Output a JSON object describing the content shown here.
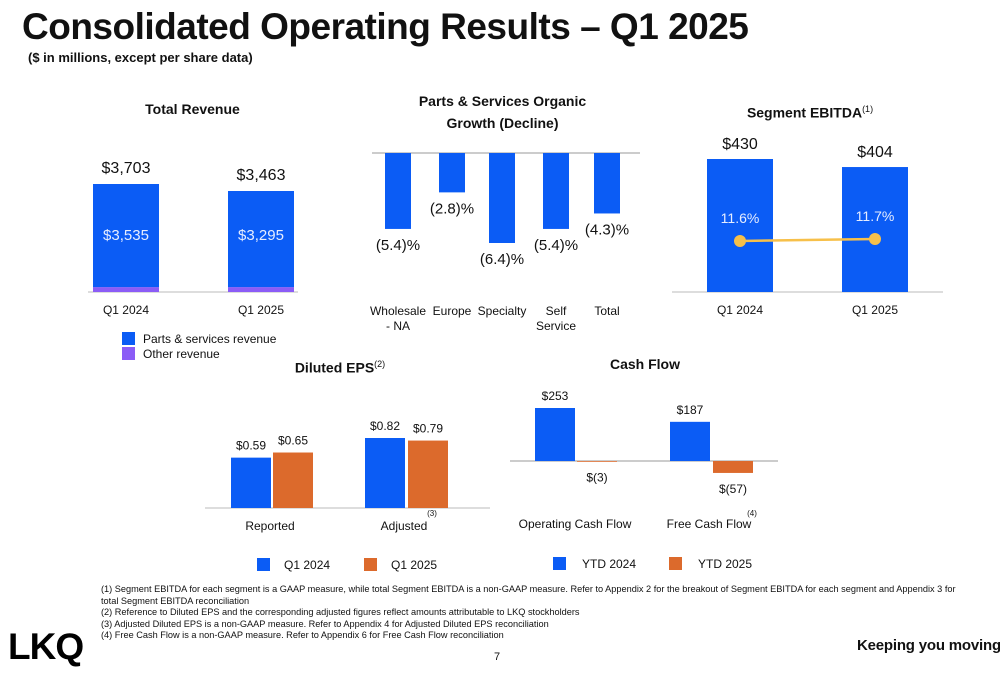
{
  "page": {
    "title": "Consolidated Operating Results – Q1 2025",
    "subtitle": "($ in millions, except per share data)",
    "page_number": "7",
    "tagline": "Keeping you moving",
    "logo_text": "LKQ"
  },
  "colors": {
    "blue": "#0b5cf5",
    "purple": "#8b5cf6",
    "orange": "#dc6a2c",
    "yellow": "#f7c04a"
  },
  "chart_data": [
    {
      "id": "total_revenue",
      "type": "bar",
      "stacked": true,
      "title": "Total Revenue",
      "categories": [
        "Q1 2024",
        "Q1 2025"
      ],
      "series": [
        {
          "name": "Parts & services revenue",
          "values": [
            3535,
            3295
          ],
          "labels": [
            "$3,535",
            "$3,295"
          ]
        },
        {
          "name": "Other revenue",
          "values": [
            168,
            168
          ]
        }
      ],
      "total_labels": [
        "$3,703",
        "$3,463"
      ]
    },
    {
      "id": "organic_growth",
      "type": "bar",
      "title_line1": "Parts & Services Organic",
      "title_line2": "Growth (Decline)",
      "categories": [
        [
          "Wholesale",
          "- NA"
        ],
        [
          "Europe"
        ],
        [
          "Specialty"
        ],
        [
          "Self",
          "Service"
        ],
        [
          "Total"
        ]
      ],
      "values": [
        -5.4,
        -2.8,
        -6.4,
        -5.4,
        -4.3
      ],
      "labels": [
        "(5.4)%",
        "(2.8)%",
        "(6.4)%",
        "(5.4)%",
        "(4.3)%"
      ]
    },
    {
      "id": "segment_ebitda",
      "type": "bar",
      "title": "Segment EBITDA",
      "title_note": "(1)",
      "categories": [
        "Q1 2024",
        "Q1 2025"
      ],
      "values": [
        430,
        404
      ],
      "labels": [
        "$430",
        "$404"
      ],
      "margin_values": [
        11.6,
        11.7
      ],
      "margin_labels": [
        "11.6%",
        "11.7%"
      ]
    },
    {
      "id": "diluted_eps",
      "type": "bar",
      "title": "Diluted EPS",
      "title_note": "(2)",
      "categories": [
        "Reported",
        "Adjusted"
      ],
      "category_notes": [
        "",
        "(3)"
      ],
      "series": [
        {
          "name": "Q1 2024",
          "values": [
            0.59,
            0.82
          ],
          "labels": [
            "$0.59",
            "$0.82"
          ]
        },
        {
          "name": "Q1 2025",
          "values": [
            0.65,
            0.79
          ],
          "labels": [
            "$0.65",
            "$0.79"
          ]
        }
      ]
    },
    {
      "id": "cash_flow",
      "type": "bar",
      "title": "Cash Flow",
      "categories": [
        "Operating Cash Flow",
        "Free Cash Flow"
      ],
      "category_notes": [
        "",
        "(4)"
      ],
      "series": [
        {
          "name": "YTD 2024",
          "values": [
            253,
            187
          ],
          "labels": [
            "$253",
            "$187"
          ]
        },
        {
          "name": "YTD 2025",
          "values": [
            -3,
            -57
          ],
          "labels": [
            "$(3)",
            "$(57)"
          ]
        }
      ]
    }
  ],
  "footnotes": [
    "(1) Segment EBITDA for each segment is a GAAP measure, while total Segment EBITDA is a non-GAAP measure. Refer to Appendix 2 for the breakout of Segment EBITDA for each segment and Appendix 3 for total Segment EBITDA reconciliation",
    "(2) Reference to Diluted EPS and the corresponding adjusted figures reflect amounts attributable to LKQ stockholders",
    "(3) Adjusted Diluted EPS is a non-GAAP measure. Refer to Appendix 4 for Adjusted Diluted EPS reconciliation",
    "(4) Free Cash Flow is a non-GAAP measure. Refer to Appendix 6 for Free Cash Flow reconciliation"
  ]
}
